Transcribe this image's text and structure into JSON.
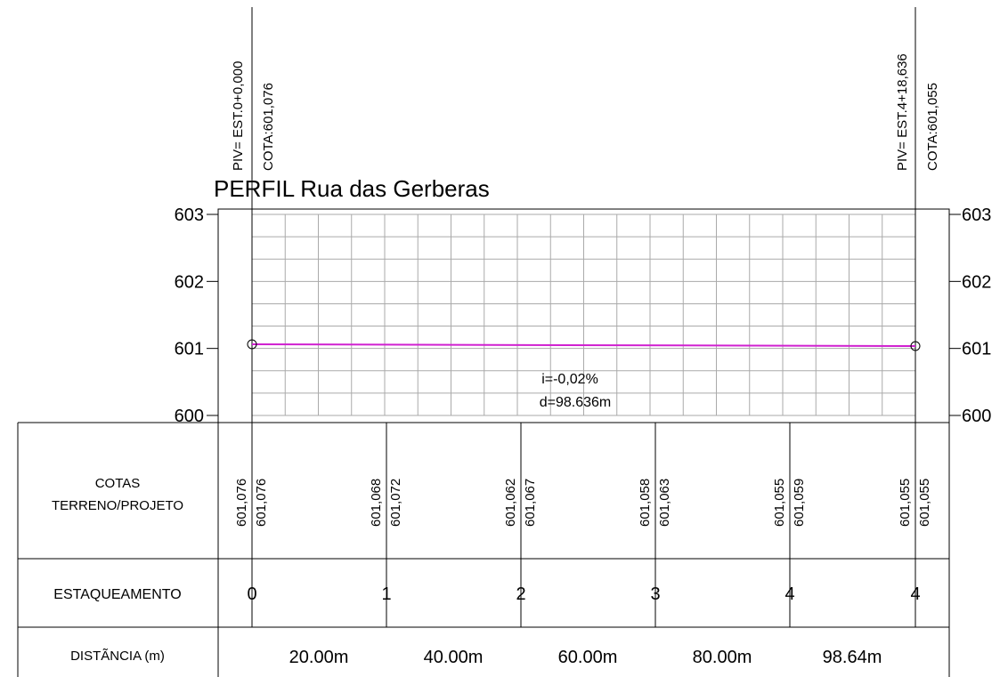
{
  "title": "PERFIL Rua das Gerberas",
  "piv_start": {
    "station": "PIV= EST.0+0,000",
    "elevation": "COTA:601,076"
  },
  "piv_end": {
    "station": "PIV= EST.4+18,636",
    "elevation": "COTA:601,055"
  },
  "y_axis_labels": [
    "603",
    "602",
    "601",
    "600"
  ],
  "slope_label": "i=-0,02%",
  "length_label": "d=98.636m",
  "table": {
    "row_labels": {
      "cotas": [
        "COTAS",
        "TERRENO/PROJETO"
      ],
      "estaqueamento": "ESTAQUEAMENTO",
      "distancia": "DISTÃNCIA (m)"
    },
    "stations": [
      {
        "terreno": "601,076",
        "projeto": "601,076",
        "estaca": "0"
      },
      {
        "terreno": "601,068",
        "projeto": "601,072",
        "estaca": "1"
      },
      {
        "terreno": "601,062",
        "projeto": "601,067",
        "estaca": "2"
      },
      {
        "terreno": "601,058",
        "projeto": "601,063",
        "estaca": "3"
      },
      {
        "terreno": "601,055",
        "projeto": "601,059",
        "estaca": "4"
      },
      {
        "terreno": "601,055",
        "projeto": "601,055",
        "estaca": "4"
      }
    ],
    "distances": [
      "20.00m",
      "40.00m",
      "60.00m",
      "80.00m",
      "98.64m"
    ]
  }
}
